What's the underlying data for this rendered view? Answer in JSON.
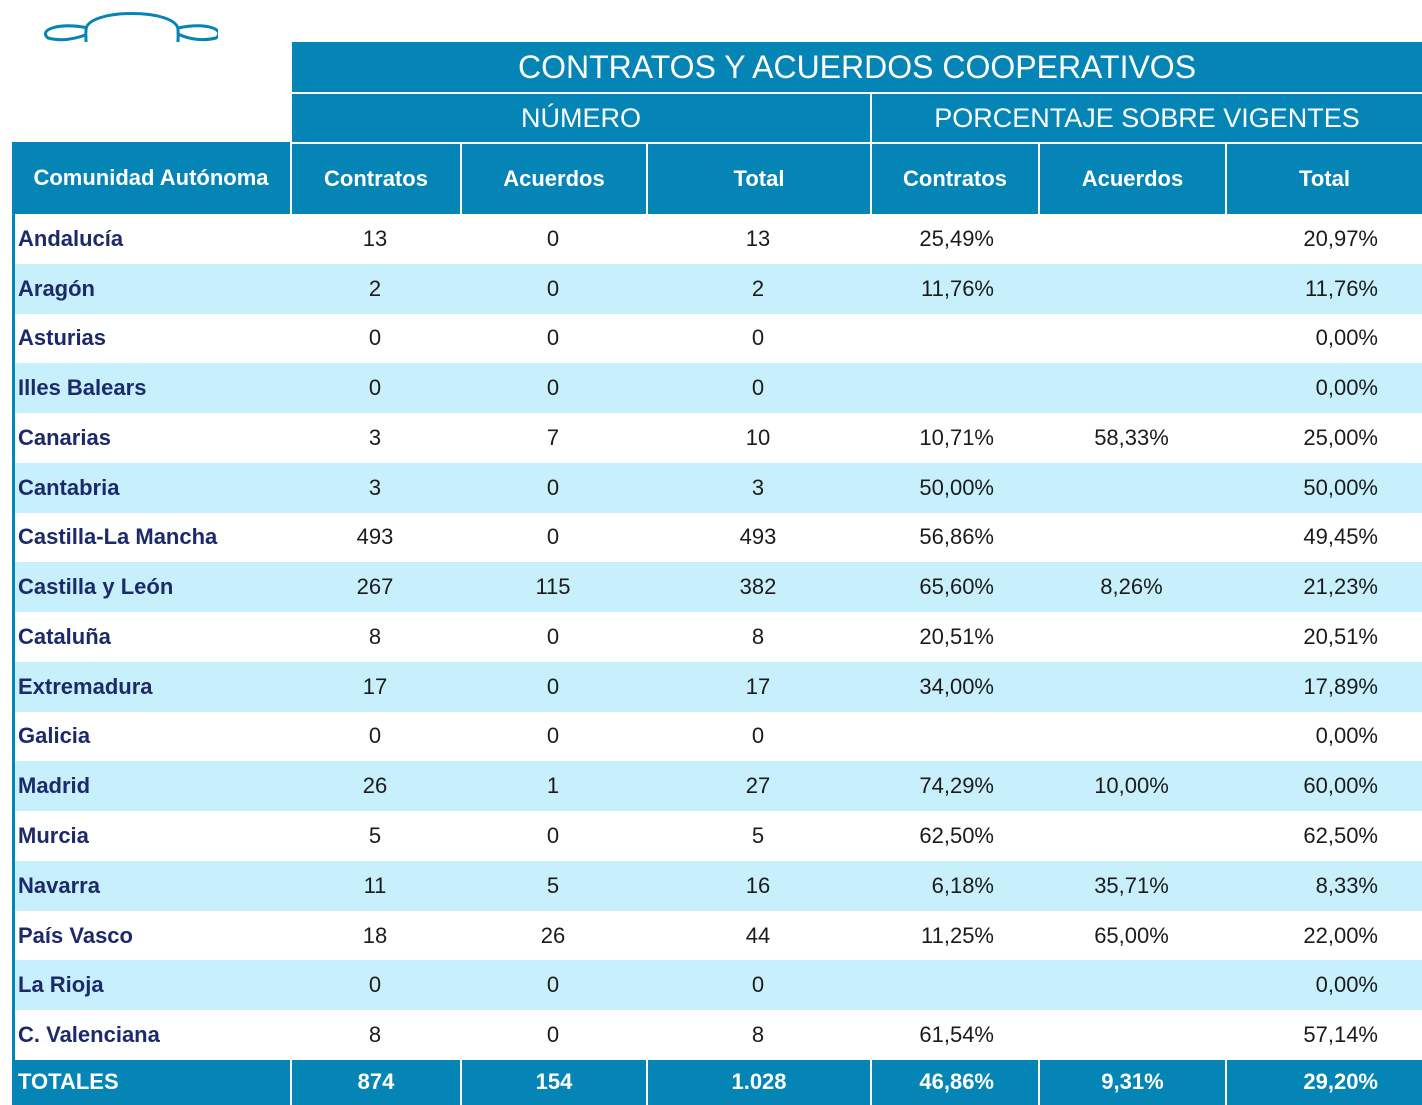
{
  "table": {
    "title": "CONTRATOS Y ACUERDOS COOPERATIVOS",
    "groups": [
      "NÚMERO",
      "PORCENTAJE SOBRE VIGENTES"
    ],
    "columns": [
      "Comunidad Autónoma",
      "Contratos",
      "Acuerdos",
      "Total",
      "Contratos",
      "Acuerdos",
      "Total"
    ],
    "rows": [
      [
        "Andalucía",
        "13",
        "0",
        "13",
        "25,49%",
        null,
        "20,97%"
      ],
      [
        "Aragón",
        "2",
        "0",
        "2",
        "11,76%",
        null,
        "11,76%"
      ],
      [
        "Asturias",
        "0",
        "0",
        "0",
        null,
        null,
        "0,00%"
      ],
      [
        "Illes Balears",
        "0",
        "0",
        "0",
        null,
        null,
        "0,00%"
      ],
      [
        "Canarias",
        "3",
        "7",
        "10",
        "10,71%",
        "58,33%",
        "25,00%"
      ],
      [
        "Cantabria",
        "3",
        "0",
        "3",
        "50,00%",
        null,
        "50,00%"
      ],
      [
        "Castilla-La Mancha",
        "493",
        "0",
        "493",
        "56,86%",
        null,
        "49,45%"
      ],
      [
        "Castilla y León",
        "267",
        "115",
        "382",
        "65,60%",
        "8,26%",
        "21,23%"
      ],
      [
        "Cataluña",
        "8",
        "0",
        "8",
        "20,51%",
        null,
        "20,51%"
      ],
      [
        "Extremadura",
        "17",
        "0",
        "17",
        "34,00%",
        null,
        "17,89%"
      ],
      [
        "Galicia",
        "0",
        "0",
        "0",
        null,
        null,
        "0,00%"
      ],
      [
        "Madrid",
        "26",
        "1",
        "27",
        "74,29%",
        "10,00%",
        "60,00%"
      ],
      [
        "Murcia",
        "5",
        "0",
        "5",
        "62,50%",
        null,
        "62,50%"
      ],
      [
        "Navarra",
        "11",
        "5",
        "16",
        "6,18%",
        "35,71%",
        "8,33%"
      ],
      [
        "País Vasco",
        "18",
        "26",
        "44",
        "11,25%",
        "65,00%",
        "22,00%"
      ],
      [
        "La Rioja",
        "0",
        "0",
        "0",
        null,
        null,
        "0,00%"
      ],
      [
        "C. Valenciana",
        "8",
        "0",
        "8",
        "61,54%",
        null,
        "57,14%"
      ]
    ],
    "totals": [
      "TOTALES",
      "874",
      "154",
      "1.028",
      "46,86%",
      "9,31%",
      "29,20%"
    ]
  }
}
